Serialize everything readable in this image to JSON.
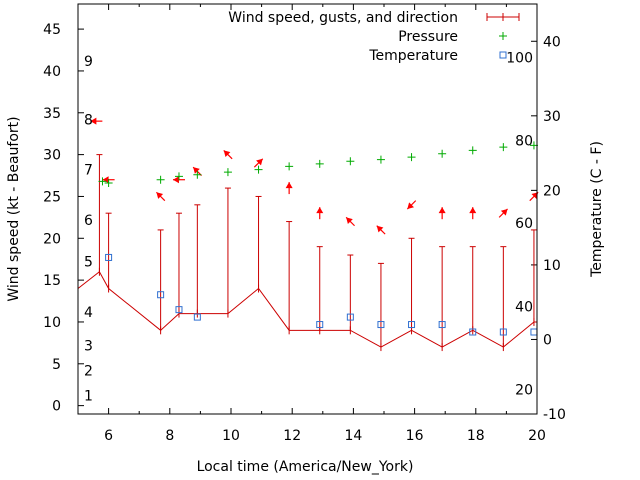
{
  "chart_data": {
    "type": "line",
    "title": "",
    "xlabel": "Local time (America/New_York)",
    "ylabel": "Wind speed (kt - Beaufort)",
    "y2label": "Temperature (C - F)",
    "xlim": [
      5,
      20
    ],
    "ylim": [
      -1,
      48
    ],
    "y2lim": [
      -10,
      45
    ],
    "x_ticks": [
      "6",
      "8",
      "10",
      "12",
      "14",
      "16",
      "18",
      "20"
    ],
    "y_ticks": [
      "0",
      "5",
      "10",
      "15",
      "20",
      "25",
      "30",
      "35",
      "40",
      "45"
    ],
    "y2_ticks": [
      "-10",
      "0",
      "10",
      "20",
      "30",
      "40"
    ],
    "beaufort_labels": [
      {
        "text": "1",
        "y": 1.2
      },
      {
        "text": "2",
        "y": 4.2
      },
      {
        "text": "3",
        "y": 7.2
      },
      {
        "text": "4",
        "y": 11.2
      },
      {
        "text": "5",
        "y": 17.2
      },
      {
        "text": "6",
        "y": 22.2
      },
      {
        "text": "7",
        "y": 28.2
      },
      {
        "text": "8",
        "y": 34.2
      },
      {
        "text": "9",
        "y": 41.2
      }
    ],
    "fahrenheit_labels": [
      {
        "text": "20",
        "y2": -6.7
      },
      {
        "text": "40",
        "y2": 4.4
      },
      {
        "text": "60",
        "y2": 15.6
      },
      {
        "text": "80",
        "y2": 26.7
      },
      {
        "text": "100",
        "y2": 37.8
      }
    ],
    "legend": {
      "position": "top-right",
      "entries": [
        "Wind speed, gusts, and direction",
        "Pressure",
        "Temperature"
      ]
    },
    "colors": {
      "wind": "#cc0000",
      "arrow": "#ff0000",
      "pressure": "#00aa00",
      "temperature": "#3070d0"
    },
    "series": [
      {
        "name": "Wind speed, gusts, and direction",
        "x": [
          5.0,
          5.7,
          6.0,
          7.7,
          8.3,
          8.9,
          9.9,
          10.9,
          11.9,
          12.9,
          13.9,
          14.9,
          15.9,
          16.9,
          17.9,
          18.9,
          19.9,
          20.0
        ],
        "values": [
          14,
          16,
          14,
          9,
          11,
          11,
          11,
          14,
          9,
          9,
          9,
          7,
          9,
          7,
          9,
          7,
          10,
          10
        ],
        "gusts": [
          null,
          30,
          23,
          21,
          23,
          24,
          26,
          25,
          22,
          19,
          18,
          17,
          20,
          19,
          19,
          19,
          21,
          null
        ]
      },
      {
        "name": "Pressure",
        "x": [
          5.8,
          6.0,
          7.7,
          8.3,
          8.9,
          9.9,
          10.9,
          11.9,
          12.9,
          13.9,
          14.9,
          15.9,
          16.9,
          17.9,
          18.9,
          19.9
        ],
        "values": [
          26.8,
          26.6,
          27.0,
          27.4,
          27.6,
          27.9,
          28.2,
          28.6,
          28.9,
          29.2,
          29.4,
          29.7,
          30.1,
          30.5,
          30.9,
          31.1
        ]
      },
      {
        "name": "Temperature",
        "x": [
          6.0,
          7.7,
          8.3,
          8.9,
          12.9,
          13.9,
          14.9,
          15.9,
          16.9,
          17.9,
          18.9,
          19.9
        ],
        "values": [
          11,
          6,
          4,
          3,
          2,
          3,
          2,
          2,
          2,
          1,
          1,
          1
        ]
      }
    ],
    "wind_direction_arrows": [
      {
        "x": 5.6,
        "y": 34,
        "dir": "W"
      },
      {
        "x": 6.0,
        "y": 27,
        "dir": "W"
      },
      {
        "x": 7.7,
        "y": 25,
        "dir": "NW"
      },
      {
        "x": 8.3,
        "y": 27,
        "dir": "W"
      },
      {
        "x": 8.9,
        "y": 28,
        "dir": "NW"
      },
      {
        "x": 9.9,
        "y": 30,
        "dir": "NW"
      },
      {
        "x": 10.9,
        "y": 29,
        "dir": "NE"
      },
      {
        "x": 11.9,
        "y": 26,
        "dir": "N"
      },
      {
        "x": 12.9,
        "y": 23,
        "dir": "N"
      },
      {
        "x": 13.9,
        "y": 22,
        "dir": "NW"
      },
      {
        "x": 14.9,
        "y": 21,
        "dir": "NW"
      },
      {
        "x": 15.9,
        "y": 24,
        "dir": "SW"
      },
      {
        "x": 16.9,
        "y": 23,
        "dir": "N"
      },
      {
        "x": 17.9,
        "y": 23,
        "dir": "N"
      },
      {
        "x": 18.9,
        "y": 23,
        "dir": "NE"
      },
      {
        "x": 19.9,
        "y": 25,
        "dir": "NE"
      }
    ]
  }
}
